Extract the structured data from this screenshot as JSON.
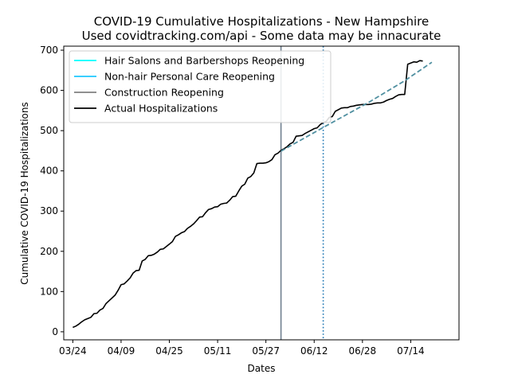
{
  "chart_data": {
    "type": "line",
    "title_line1": "COVID-19 Cumulative Hospitalizations - New Hampshire",
    "title_line2": "Used covidtracking.com/api - Some data may be innacurate",
    "xlabel": "Dates",
    "ylabel": "Cumulative COVID-19 Hospitalizations",
    "x_range": [
      "2020-03-21",
      "2020-07-30"
    ],
    "ylim": [
      -20,
      710
    ],
    "x_ticks": [
      "2020-03-24",
      "2020-04-09",
      "2020-04-25",
      "2020-05-11",
      "2020-05-27",
      "2020-06-12",
      "2020-06-28",
      "2020-07-14"
    ],
    "x_tick_labels": [
      "03/24",
      "04/09",
      "04/25",
      "05/11",
      "05/27",
      "06/12",
      "06/28",
      "07/14"
    ],
    "y_ticks": [
      0,
      100,
      200,
      300,
      400,
      500,
      600,
      700
    ],
    "grid": false,
    "legend_position": "top-left",
    "legend": [
      {
        "label": "Hair Salons and Barbershops Reopening",
        "color": "#00ffff",
        "style": "solid"
      },
      {
        "label": "Non-hair Personal Care Reopening",
        "color": "#1ec8ff",
        "style": "solid"
      },
      {
        "label": "Construction Reopening",
        "color": "#808080",
        "style": "solid"
      },
      {
        "label": "Actual Hospitalizations",
        "color": "#000000",
        "style": "solid"
      }
    ],
    "vertical_lines": [
      {
        "date": "2020-06-01",
        "color": "#708090",
        "style": "solid"
      },
      {
        "date": "2020-06-15",
        "color": "#1f77b4",
        "style": "dotted"
      }
    ],
    "projection": {
      "name": "",
      "color": "#4f8fa0",
      "style": "dashed",
      "points": [
        [
          "2020-06-01",
          449
        ],
        [
          "2020-06-16",
          512
        ],
        [
          "2020-06-30",
          570
        ],
        [
          "2020-07-12",
          624
        ],
        [
          "2020-07-21",
          670
        ]
      ]
    },
    "actual": {
      "name": "Actual Hospitalizations",
      "color": "#000000",
      "points": [
        [
          "2020-03-24",
          11
        ],
        [
          "2020-03-25",
          14
        ],
        [
          "2020-03-26",
          19
        ],
        [
          "2020-03-27",
          25
        ],
        [
          "2020-03-28",
          30
        ],
        [
          "2020-03-29",
          33
        ],
        [
          "2020-03-30",
          36
        ],
        [
          "2020-03-31",
          45
        ],
        [
          "2020-04-01",
          46
        ],
        [
          "2020-04-02",
          54
        ],
        [
          "2020-04-03",
          58
        ],
        [
          "2020-04-04",
          70
        ],
        [
          "2020-04-05",
          77
        ],
        [
          "2020-04-06",
          84
        ],
        [
          "2020-04-07",
          91
        ],
        [
          "2020-04-08",
          103
        ],
        [
          "2020-04-09",
          117
        ],
        [
          "2020-04-10",
          119
        ],
        [
          "2020-04-11",
          126
        ],
        [
          "2020-04-12",
          134
        ],
        [
          "2020-04-13",
          146
        ],
        [
          "2020-04-14",
          152
        ],
        [
          "2020-04-15",
          153
        ],
        [
          "2020-04-16",
          176
        ],
        [
          "2020-04-17",
          180
        ],
        [
          "2020-04-18",
          189
        ],
        [
          "2020-04-19",
          190
        ],
        [
          "2020-04-20",
          193
        ],
        [
          "2020-04-21",
          198
        ],
        [
          "2020-04-22",
          205
        ],
        [
          "2020-04-23",
          206
        ],
        [
          "2020-04-24",
          212
        ],
        [
          "2020-04-25",
          218
        ],
        [
          "2020-04-26",
          224
        ],
        [
          "2020-04-27",
          237
        ],
        [
          "2020-04-28",
          241
        ],
        [
          "2020-04-29",
          246
        ],
        [
          "2020-04-30",
          249
        ],
        [
          "2020-05-01",
          257
        ],
        [
          "2020-05-02",
          262
        ],
        [
          "2020-05-03",
          268
        ],
        [
          "2020-05-04",
          276
        ],
        [
          "2020-05-05",
          285
        ],
        [
          "2020-05-06",
          286
        ],
        [
          "2020-05-07",
          296
        ],
        [
          "2020-05-08",
          304
        ],
        [
          "2020-05-09",
          306
        ],
        [
          "2020-05-10",
          310
        ],
        [
          "2020-05-11",
          311
        ],
        [
          "2020-05-12",
          317
        ],
        [
          "2020-05-13",
          319
        ],
        [
          "2020-05-14",
          320
        ],
        [
          "2020-05-15",
          327
        ],
        [
          "2020-05-16",
          336
        ],
        [
          "2020-05-17",
          337
        ],
        [
          "2020-05-18",
          350
        ],
        [
          "2020-05-19",
          362
        ],
        [
          "2020-05-20",
          367
        ],
        [
          "2020-05-21",
          382
        ],
        [
          "2020-05-22",
          386
        ],
        [
          "2020-05-23",
          395
        ],
        [
          "2020-05-24",
          418
        ],
        [
          "2020-05-25",
          419
        ],
        [
          "2020-05-26",
          419
        ],
        [
          "2020-05-27",
          420
        ],
        [
          "2020-05-28",
          423
        ],
        [
          "2020-05-29",
          428
        ],
        [
          "2020-05-30",
          440
        ],
        [
          "2020-05-31",
          444
        ],
        [
          "2020-06-01",
          451
        ],
        [
          "2020-06-02",
          455
        ],
        [
          "2020-06-03",
          460
        ],
        [
          "2020-06-04",
          467
        ],
        [
          "2020-06-05",
          471
        ],
        [
          "2020-06-06",
          486
        ],
        [
          "2020-06-07",
          487
        ],
        [
          "2020-06-08",
          488
        ],
        [
          "2020-06-09",
          493
        ],
        [
          "2020-06-10",
          497
        ],
        [
          "2020-06-11",
          501
        ],
        [
          "2020-06-12",
          505
        ],
        [
          "2020-06-13",
          507
        ],
        [
          "2020-06-14",
          515
        ],
        [
          "2020-06-15",
          520
        ],
        [
          "2020-06-16",
          523
        ],
        [
          "2020-06-17",
          533
        ],
        [
          "2020-06-18",
          535
        ],
        [
          "2020-06-19",
          548
        ],
        [
          "2020-06-20",
          552
        ],
        [
          "2020-06-21",
          556
        ],
        [
          "2020-06-22",
          557
        ],
        [
          "2020-06-23",
          557
        ],
        [
          "2020-06-24",
          560
        ],
        [
          "2020-06-25",
          561
        ],
        [
          "2020-06-26",
          563
        ],
        [
          "2020-06-27",
          564
        ],
        [
          "2020-06-28",
          565
        ],
        [
          "2020-06-29",
          565
        ],
        [
          "2020-06-30",
          565
        ],
        [
          "2020-07-01",
          566
        ],
        [
          "2020-07-02",
          568
        ],
        [
          "2020-07-03",
          569
        ],
        [
          "2020-07-04",
          569
        ],
        [
          "2020-07-05",
          571
        ],
        [
          "2020-07-06",
          575
        ],
        [
          "2020-07-07",
          578
        ],
        [
          "2020-07-08",
          580
        ],
        [
          "2020-07-09",
          585
        ],
        [
          "2020-07-10",
          589
        ],
        [
          "2020-07-11",
          590
        ],
        [
          "2020-07-12",
          590
        ],
        [
          "2020-07-13",
          665
        ],
        [
          "2020-07-14",
          668
        ],
        [
          "2020-07-15",
          671
        ],
        [
          "2020-07-16",
          670
        ],
        [
          "2020-07-17",
          674
        ],
        [
          "2020-07-18",
          673
        ]
      ]
    }
  }
}
